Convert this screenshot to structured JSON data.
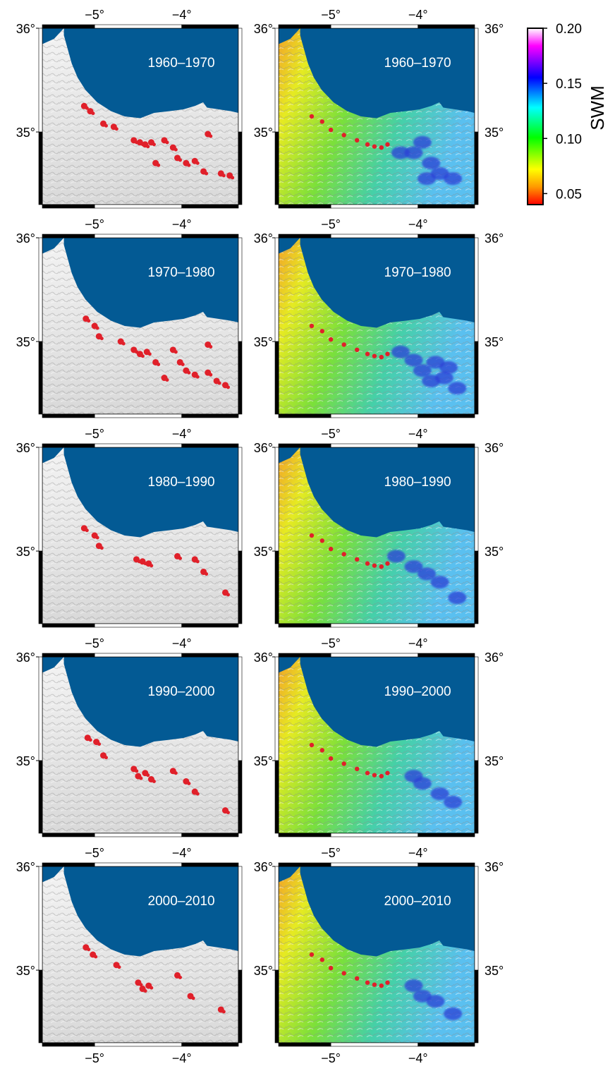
{
  "periods": [
    "1960–1970",
    "1970–1980",
    "1980–1990",
    "1990–2000",
    "2000–2010"
  ],
  "lon_ticks": [
    {
      "value": -5,
      "label": "−5°"
    },
    {
      "value": -4,
      "label": "−4°"
    }
  ],
  "lat_ticks": [
    {
      "value": 36,
      "label": "36°"
    },
    {
      "value": 35,
      "label": "35°"
    }
  ],
  "colorbar": {
    "title": "SWM",
    "min": 0.04,
    "max": 0.2,
    "ticks": [
      {
        "value": 0.2,
        "label": "0.20"
      },
      {
        "value": 0.15,
        "label": "0.15"
      },
      {
        "value": 0.1,
        "label": "0.10"
      },
      {
        "value": 0.05,
        "label": "0.05"
      }
    ],
    "stops": [
      "#ff0000",
      "#ff9900",
      "#ffff00",
      "#00ff00",
      "#00ffff",
      "#0000ff",
      "#ff00ff",
      "#ffffff"
    ]
  },
  "colors": {
    "sea": "#035a94",
    "land_shade": "#e8e8e8",
    "hotspot": "#e0202a",
    "low_swm_land": "#3fd85c",
    "high_swm_land": "#2b3fd6"
  },
  "map_extent": {
    "lon_min": -5.6,
    "lon_max": -3.35,
    "lat_min": 34.3,
    "lat_max": 36.0
  },
  "left_column_hotspots": [
    [
      [
        -5.12,
        35.25
      ],
      [
        -5.05,
        35.2
      ],
      [
        -4.9,
        35.08
      ],
      [
        -4.78,
        35.05
      ],
      [
        -4.55,
        34.92
      ],
      [
        -4.48,
        34.9
      ],
      [
        -4.42,
        34.88
      ],
      [
        -4.35,
        34.9
      ],
      [
        -4.2,
        34.92
      ],
      [
        -4.1,
        34.85
      ],
      [
        -4.05,
        34.75
      ],
      [
        -3.95,
        34.7
      ],
      [
        -3.85,
        34.72
      ],
      [
        -3.75,
        34.62
      ],
      [
        -3.55,
        34.6
      ],
      [
        -3.45,
        34.58
      ],
      [
        -4.3,
        34.7
      ],
      [
        -3.7,
        34.98
      ]
    ],
    [
      [
        -5.1,
        35.22
      ],
      [
        -5.0,
        35.15
      ],
      [
        -4.95,
        35.05
      ],
      [
        -4.7,
        35.0
      ],
      [
        -4.55,
        34.92
      ],
      [
        -4.48,
        34.88
      ],
      [
        -4.4,
        34.9
      ],
      [
        -4.3,
        34.8
      ],
      [
        -4.1,
        34.92
      ],
      [
        -4.02,
        34.8
      ],
      [
        -3.95,
        34.72
      ],
      [
        -3.85,
        34.68
      ],
      [
        -3.7,
        34.7
      ],
      [
        -3.6,
        34.62
      ],
      [
        -3.5,
        34.58
      ],
      [
        -4.2,
        34.65
      ],
      [
        -3.7,
        34.97
      ]
    ],
    [
      [
        -5.12,
        35.22
      ],
      [
        -5.0,
        35.15
      ],
      [
        -4.95,
        35.05
      ],
      [
        -4.52,
        34.92
      ],
      [
        -4.45,
        34.9
      ],
      [
        -4.38,
        34.88
      ],
      [
        -4.05,
        34.95
      ],
      [
        -3.85,
        34.92
      ],
      [
        -3.75,
        34.8
      ],
      [
        -3.5,
        34.6
      ]
    ],
    [
      [
        -5.08,
        35.22
      ],
      [
        -4.98,
        35.18
      ],
      [
        -4.9,
        35.05
      ],
      [
        -4.55,
        34.92
      ],
      [
        -4.5,
        34.85
      ],
      [
        -4.42,
        34.88
      ],
      [
        -4.35,
        34.82
      ],
      [
        -4.1,
        34.9
      ],
      [
        -3.95,
        34.8
      ],
      [
        -3.85,
        34.7
      ],
      [
        -3.5,
        34.52
      ]
    ],
    [
      [
        -5.1,
        35.22
      ],
      [
        -5.02,
        35.15
      ],
      [
        -4.75,
        35.05
      ],
      [
        -4.5,
        34.88
      ],
      [
        -4.45,
        34.82
      ],
      [
        -4.38,
        34.85
      ],
      [
        -4.05,
        34.95
      ],
      [
        -3.9,
        34.75
      ],
      [
        -3.55,
        34.62
      ]
    ]
  ],
  "right_column_high_swm": [
    [
      [
        -4.05,
        34.8
      ],
      [
        -3.95,
        34.9
      ],
      [
        -3.85,
        34.7
      ],
      [
        -3.75,
        34.6
      ],
      [
        -3.6,
        34.55
      ],
      [
        -4.2,
        34.8
      ],
      [
        -3.9,
        34.55
      ]
    ],
    [
      [
        -4.05,
        34.82
      ],
      [
        -3.95,
        34.72
      ],
      [
        -3.85,
        34.62
      ],
      [
        -3.7,
        34.65
      ],
      [
        -3.55,
        34.55
      ],
      [
        -4.2,
        34.9
      ],
      [
        -3.8,
        34.8
      ],
      [
        -3.65,
        34.75
      ]
    ],
    [
      [
        -4.05,
        34.85
      ],
      [
        -3.9,
        34.78
      ],
      [
        -3.75,
        34.7
      ],
      [
        -3.55,
        34.55
      ],
      [
        -4.25,
        34.95
      ]
    ],
    [
      [
        -4.05,
        34.85
      ],
      [
        -3.95,
        34.78
      ],
      [
        -3.75,
        34.68
      ],
      [
        -3.6,
        34.6
      ]
    ],
    [
      [
        -4.05,
        34.85
      ],
      [
        -3.95,
        34.75
      ],
      [
        -3.8,
        34.7
      ],
      [
        -3.6,
        34.58
      ]
    ]
  ],
  "right_column_red_ridge": [
    [
      -5.22,
      35.15
    ],
    [
      -5.1,
      35.1
    ],
    [
      -5.0,
      35.02
    ],
    [
      -4.85,
      34.97
    ],
    [
      -4.7,
      34.92
    ],
    [
      -4.58,
      34.88
    ],
    [
      -4.5,
      34.86
    ],
    [
      -4.42,
      34.85
    ],
    [
      -4.35,
      34.88
    ]
  ]
}
